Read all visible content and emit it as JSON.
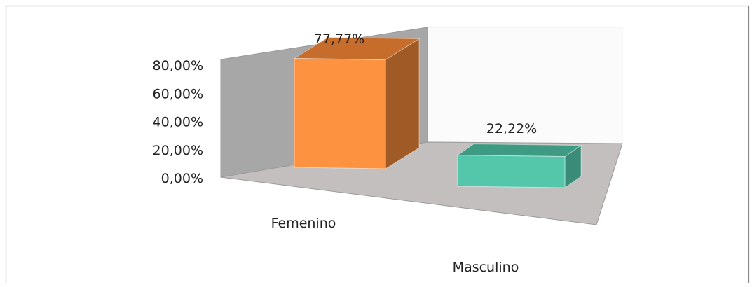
{
  "chart_data": {
    "type": "bar",
    "style": "3d-column",
    "categories": [
      "Femenino",
      "Masculino"
    ],
    "values": [
      77.77,
      22.22
    ],
    "data_labels": [
      "77,77%",
      "22,22%"
    ],
    "ytick_labels": [
      "0,00%",
      "20,00%",
      "40,00%",
      "60,00%",
      "80,00%"
    ],
    "yticks": [
      0,
      20,
      40,
      60,
      80
    ],
    "ylim": [
      0,
      80
    ],
    "title": "",
    "xlabel": "",
    "ylabel": "",
    "grid": false,
    "legend": "none",
    "colors": {
      "bars": [
        "#fd9240",
        "#54c7ab"
      ],
      "bar_sides": [
        "#a05a25",
        "#3a8c79"
      ],
      "bar_tops": [
        "#c66d2c",
        "#3e9a82"
      ],
      "back_wall": "#fbfbfb",
      "side_wall": "#a7a7a7",
      "floor": "#c3bfbf",
      "frame": "#888888"
    }
  }
}
